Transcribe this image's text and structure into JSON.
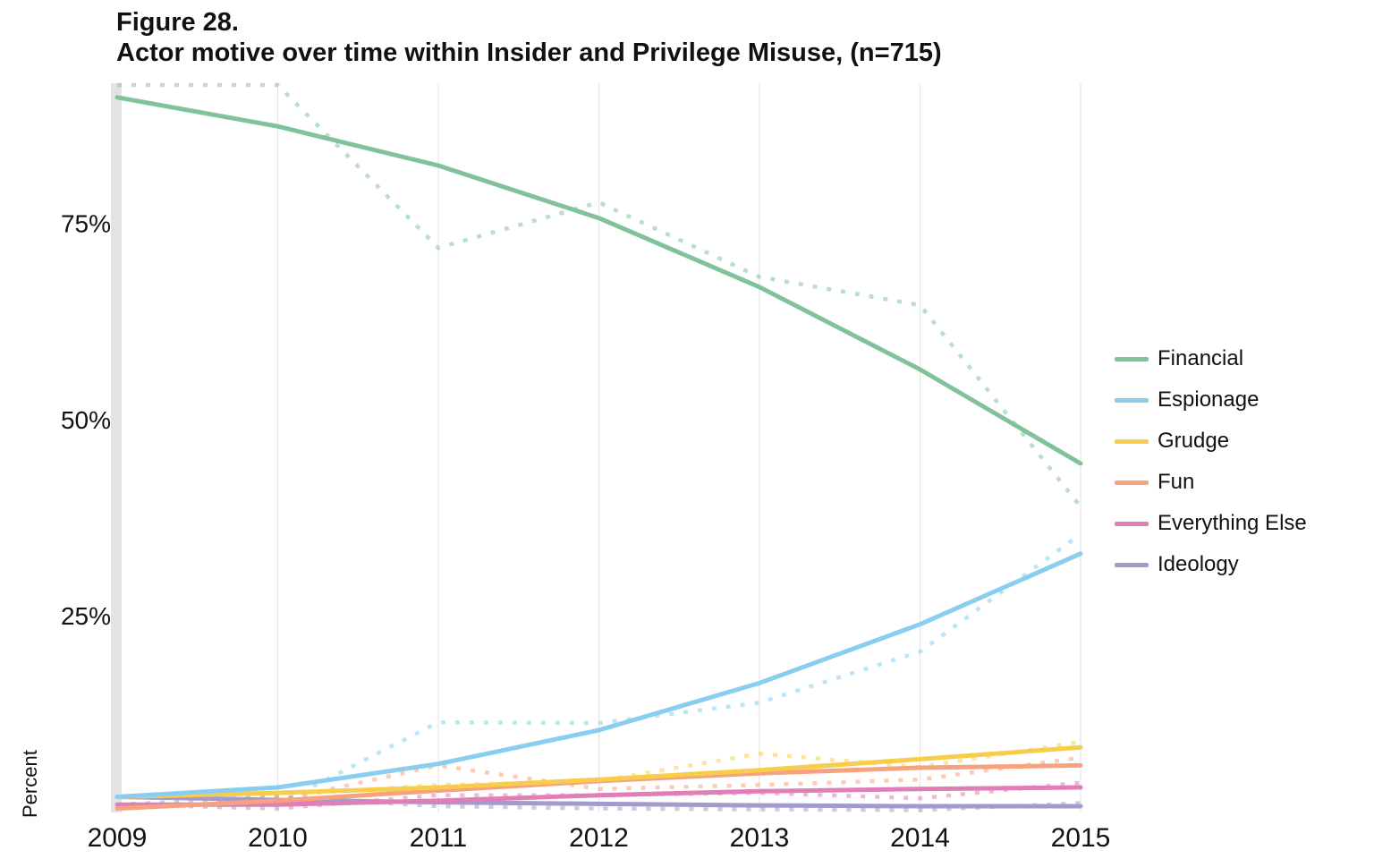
{
  "figure": {
    "number": "Figure 28.",
    "title": "Actor motive over time within Insider and Privilege Misuse, (n=715)"
  },
  "chart_data": {
    "type": "line",
    "title": "Actor motive over time within Insider and Privilege Misuse, (n=715)",
    "xlabel": "",
    "ylabel": "Percent",
    "x": [
      2009,
      2010,
      2011,
      2012,
      2013,
      2014,
      2015
    ],
    "x_tick_labels": [
      "2009",
      "2010",
      "2011",
      "2012",
      "2013",
      "2014",
      "2015"
    ],
    "y_tick_values": [
      0.25,
      0.5,
      0.75
    ],
    "y_tick_labels": [
      "25%",
      "50%",
      "75%"
    ],
    "ylim": [
      0,
      0.93
    ],
    "xlim": [
      2009,
      2015
    ],
    "grid": "vertical",
    "legend_position": "right",
    "line_styles": {
      "trend": "solid",
      "observed": "dotted"
    },
    "series": [
      {
        "name": "Financial",
        "color": "#82c29a",
        "trend": [
          0.912,
          0.875,
          0.825,
          0.758,
          0.67,
          0.565,
          0.445
        ],
        "observed": [
          0.95,
          0.93,
          0.72,
          0.778,
          0.683,
          0.647,
          0.39
        ]
      },
      {
        "name": "Espionage",
        "color": "#89cdf1",
        "trend": [
          0.02,
          0.032,
          0.062,
          0.105,
          0.165,
          0.24,
          0.33
        ],
        "observed": [
          0.01,
          0.01,
          0.115,
          0.114,
          0.14,
          0.205,
          0.355
        ]
      },
      {
        "name": "Grudge",
        "color": "#f8cd4b",
        "trend": [
          0.02,
          0.025,
          0.032,
          0.042,
          0.054,
          0.068,
          0.083
        ],
        "observed": [
          0.02,
          0.022,
          0.035,
          0.04,
          0.075,
          0.058,
          0.09
        ]
      },
      {
        "name": "Fun",
        "color": "#f6a27e",
        "trend": [
          0.005,
          0.015,
          0.028,
          0.04,
          0.05,
          0.057,
          0.06
        ],
        "observed": [
          0.005,
          0.015,
          0.06,
          0.03,
          0.035,
          0.042,
          0.07
        ]
      },
      {
        "name": "Everything Else",
        "color": "#e07fb7",
        "trend": [
          0.01,
          0.01,
          0.015,
          0.022,
          0.027,
          0.03,
          0.032
        ],
        "observed": [
          0.01,
          0.005,
          0.022,
          0.022,
          0.025,
          0.018,
          0.038
        ]
      },
      {
        "name": "Ideology",
        "color": "#a59acb",
        "trend": [
          0.02,
          0.016,
          0.013,
          0.011,
          0.009,
          0.008,
          0.008
        ],
        "observed": [
          0.01,
          0.02,
          0.008,
          0.005,
          0.004,
          0.003,
          0.012
        ]
      }
    ]
  }
}
